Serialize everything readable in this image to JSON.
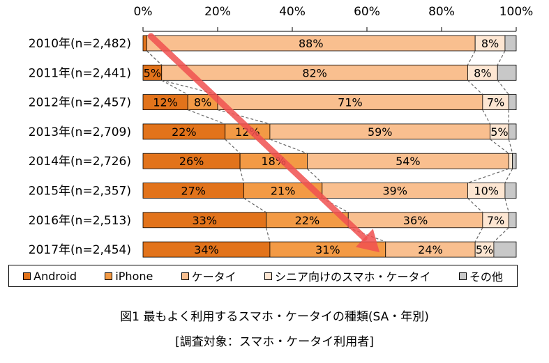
{
  "chart_data": {
    "type": "bar",
    "orientation": "horizontal",
    "stacked": true,
    "categories": [
      "2010年(n=2,482)",
      "2011年(n=2,441)",
      "2012年(n=2,457)",
      "2013年(n=2,709)",
      "2014年(n=2,726)",
      "2015年(n=2,357)",
      "2016年(n=2,513)",
      "2017年(n=2,454)"
    ],
    "series": [
      {
        "name": "Android",
        "color": "#e2731b",
        "values": [
          1,
          5,
          12,
          22,
          26,
          27,
          33,
          34
        ],
        "labels": [
          "",
          "5%",
          "12%",
          "22%",
          "26%",
          "27%",
          "33%",
          "34%"
        ]
      },
      {
        "name": "iPhone",
        "color": "#f39a45",
        "values": [
          0,
          0,
          8,
          12,
          18,
          21,
          22,
          31
        ],
        "labels": [
          "",
          "",
          "8%",
          "12%",
          "18%",
          "21%",
          "22%",
          "31%"
        ]
      },
      {
        "name": "ケータイ",
        "color": "#f9bf8f",
        "values": [
          88,
          82,
          71,
          59,
          54,
          39,
          36,
          24
        ],
        "labels": [
          "88%",
          "82%",
          "71%",
          "59%",
          "54%",
          "39%",
          "36%",
          "24%"
        ]
      },
      {
        "name": "シニア向けのスマホ・ケータイ",
        "color": "#fde6d2",
        "values": [
          8,
          8,
          7,
          5,
          1,
          10,
          7,
          5
        ],
        "labels": [
          "8%",
          "8%",
          "7%",
          "5%",
          "",
          "10%",
          "7%",
          "5%"
        ]
      },
      {
        "name": "その他",
        "color": "#c8c8c8",
        "values": [
          3,
          5,
          2,
          2,
          1,
          3,
          2,
          6
        ],
        "labels": [
          "",
          "",
          "",
          "",
          "",
          "",
          "",
          ""
        ]
      }
    ],
    "xlim": [
      0,
      100
    ],
    "x_ticks": [
      "0%",
      "20%",
      "40%",
      "60%",
      "80%",
      "100%"
    ],
    "arrow_annotation": {
      "color": "#f05050",
      "from": {
        "category": "2010年(n=2,482)",
        "x": 1
      },
      "to": {
        "category": "2017年(n=2,454)",
        "x": 66
      }
    },
    "title": "図1 最もよく利用するスマホ・ケータイの種類(SA・年別)",
    "subtitle": "[調査対象：スマホ・ケータイ利用者]",
    "legend_position": "bottom",
    "grid": false
  }
}
